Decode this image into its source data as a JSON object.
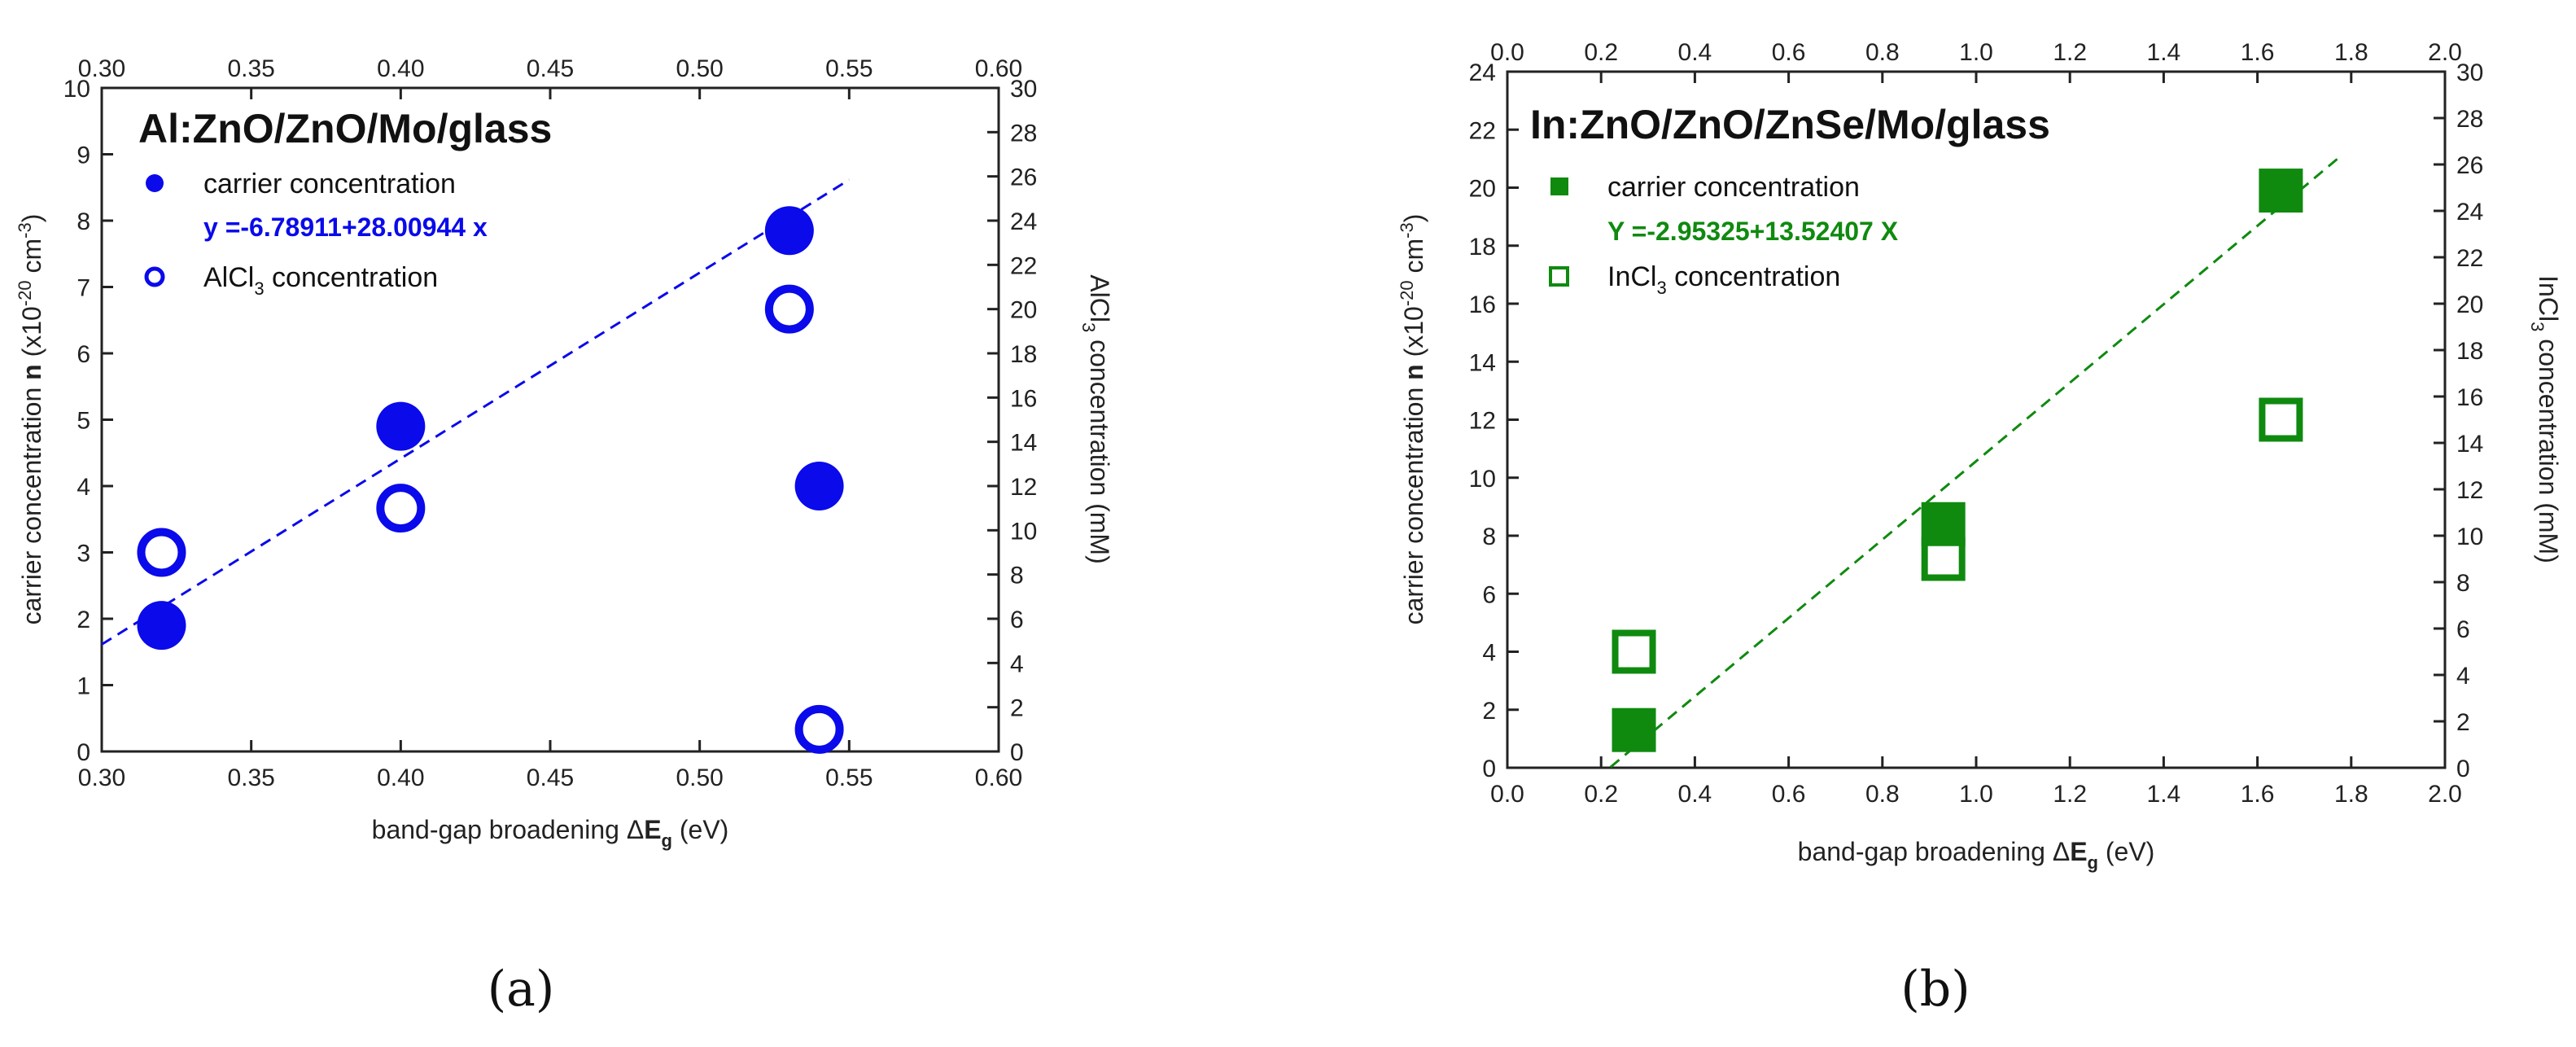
{
  "chart_data": [
    {
      "type": "scatter",
      "title": "Al:ZnO/ZnO/Mo/glass",
      "xlabel": "band-gap broadening ΔE_g (eV)",
      "ylabel": "carrier concentration n (x10^-20 cm^-3)",
      "y2label": "AlCl3 concentration (mM)",
      "xlim": [
        0.3,
        0.6
      ],
      "ylim": [
        0,
        10
      ],
      "y2lim": [
        0,
        30
      ],
      "xticks": [
        "0.30",
        "0.35",
        "0.40",
        "0.45",
        "0.50",
        "0.55",
        "0.60"
      ],
      "yticks": [
        "0",
        "1",
        "2",
        "3",
        "4",
        "5",
        "6",
        "7",
        "8",
        "9",
        "10"
      ],
      "y2ticks": [
        "0",
        "2",
        "4",
        "6",
        "8",
        "10",
        "12",
        "14",
        "16",
        "18",
        "20",
        "22",
        "24",
        "26",
        "28",
        "30"
      ],
      "color": "#0a0aeb",
      "series": [
        {
          "name": "carrier concentration",
          "marker": "filled-circle",
          "axis": "left",
          "x": [
            0.32,
            0.4,
            0.53,
            0.54
          ],
          "y": [
            1.9,
            4.9,
            7.85,
            4.0
          ]
        },
        {
          "name": "AlCl3 concentration",
          "marker": "open-circle",
          "axis": "right",
          "x": [
            0.32,
            0.4,
            0.53,
            0.54
          ],
          "y": [
            9,
            11,
            20,
            1
          ]
        }
      ],
      "fit": {
        "label": "y =-6.78911+28.00944 x",
        "intercept": -6.78911,
        "slope": 28.00944,
        "x_range": [
          0.3,
          0.55
        ]
      },
      "legend": {
        "carrier": "carrier concentration",
        "salt_prefix": "AlCl",
        "salt_sub": "3",
        "salt_suffix": " concentration"
      },
      "axis_text": {
        "x_prefix": "band-gap broadening ",
        "x_delta": "Δ",
        "x_E": "E",
        "x_sub": "g",
        "x_unit": " (eV)",
        "y_prefix": "carrier concentration ",
        "y_n": "n",
        "y_mid": " (x10",
        "y_exp": "-20",
        "y_mid2": " cm",
        "y_exp2": "-3",
        "y_end": ")",
        "y2_prefix": "AlCl",
        "y2_sub": "3",
        "y2_suffix": " concentration (mM)"
      },
      "caption": "(a)"
    },
    {
      "type": "scatter",
      "title": "In:ZnO/ZnO/ZnSe/Mo/glass",
      "xlabel": "band-gap broadening ΔE_g (eV)",
      "ylabel": "carrier concentration n (x10^-20 cm^-3)",
      "y2label": "InCl3 concentration (mM)",
      "xlim": [
        0.0,
        2.0
      ],
      "ylim": [
        0,
        24
      ],
      "y2lim": [
        0,
        30
      ],
      "xticks": [
        "0.0",
        "0.2",
        "0.4",
        "0.6",
        "0.8",
        "1.0",
        "1.2",
        "1.4",
        "1.6",
        "1.8",
        "2.0"
      ],
      "yticks": [
        "0",
        "2",
        "4",
        "6",
        "8",
        "10",
        "12",
        "14",
        "16",
        "18",
        "20",
        "22",
        "24"
      ],
      "y2ticks": [
        "0",
        "2",
        "4",
        "6",
        "8",
        "10",
        "12",
        "14",
        "16",
        "18",
        "20",
        "22",
        "24",
        "26",
        "28",
        "30"
      ],
      "color": "#0f8a0f",
      "series": [
        {
          "name": "carrier concentration",
          "marker": "filled-square",
          "axis": "left",
          "x": [
            0.27,
            0.93,
            1.65
          ],
          "y": [
            1.3,
            8.4,
            19.9
          ]
        },
        {
          "name": "InCl3 concentration",
          "marker": "open-square",
          "axis": "right",
          "x": [
            0.27,
            0.93,
            1.65
          ],
          "y": [
            5,
            9,
            15
          ]
        }
      ],
      "fit": {
        "label": "Y =-2.95325+13.52407 X",
        "intercept": -2.95325,
        "slope": 13.52407,
        "x_range": [
          0.22,
          1.78
        ]
      },
      "legend": {
        "carrier": "carrier concentration",
        "salt_prefix": "InCl",
        "salt_sub": "3",
        "salt_suffix": " concentration"
      },
      "axis_text": {
        "x_prefix": "band-gap broadening ",
        "x_delta": "Δ",
        "x_E": "E",
        "x_sub": "g",
        "x_unit": " (eV)",
        "y_prefix": "carrier concentration ",
        "y_n": "n",
        "y_mid": " (x10",
        "y_exp": "-20",
        "y_mid2": " cm",
        "y_exp2": "-3",
        "y_end": ")",
        "y2_prefix": "InCl",
        "y2_sub": "3",
        "y2_suffix": " concentration (mM)"
      },
      "caption": "(b)"
    }
  ]
}
